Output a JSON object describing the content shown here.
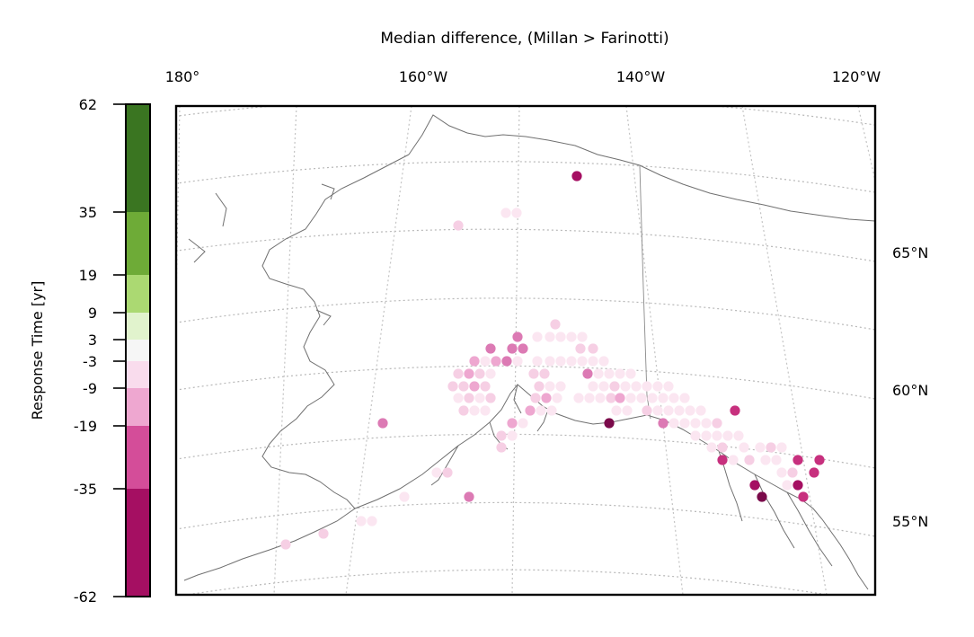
{
  "title": "Median difference, (Millan > Farinotti)",
  "lon_labels": [
    "180°",
    "160°W",
    "140°W",
    "120°W"
  ],
  "lat_labels": [
    "65°N",
    "60°N",
    "55°N"
  ],
  "colorbar": {
    "label": "Response Time [yr]",
    "ticks": [
      "62",
      "35",
      "19",
      "9",
      "3",
      "-3",
      "-9",
      "-19",
      "-35",
      "-62"
    ],
    "bins": [
      {
        "from": 35,
        "to": 62,
        "color": "#3a7521"
      },
      {
        "from": 19,
        "to": 35,
        "color": "#6eab37"
      },
      {
        "from": 9,
        "to": 19,
        "color": "#abd972"
      },
      {
        "from": 3,
        "to": 9,
        "color": "#e1f3cd"
      },
      {
        "from": -3,
        "to": 3,
        "color": "#f6f6f6"
      },
      {
        "from": -9,
        "to": -3,
        "color": "#f9dced"
      },
      {
        "from": -19,
        "to": -9,
        "color": "#eea7d0"
      },
      {
        "from": -35,
        "to": -19,
        "color": "#d44d99"
      },
      {
        "from": -62,
        "to": -35,
        "color": "#a50f62"
      }
    ]
  },
  "colors": {
    "darkest": "#7a0a4a",
    "dark": "#a50f62",
    "strong": "#c7307e",
    "medium": "#dc7ab4",
    "light": "#eea7d0",
    "pale": "#f6cfe4",
    "faint": "#fbe6f1"
  }
}
